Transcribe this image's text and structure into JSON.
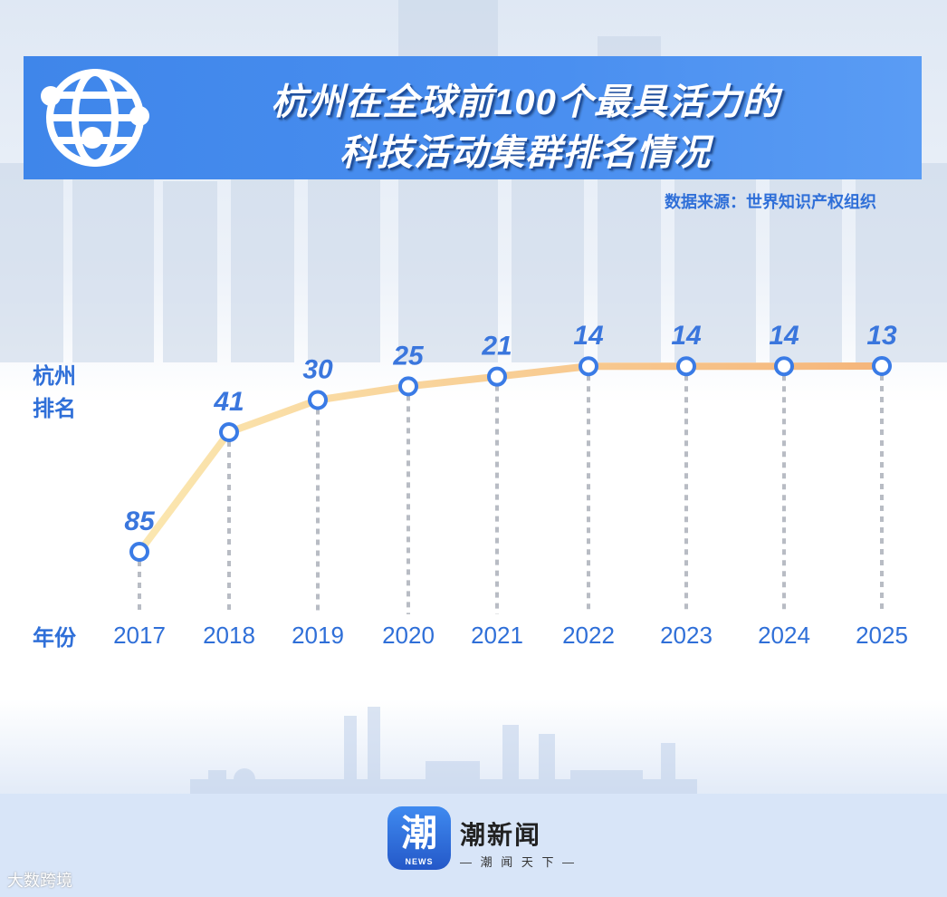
{
  "title": {
    "line1": "杭州在全球前100个最具活力的",
    "line2": "科技活动集群排名情况"
  },
  "source": "数据来源：世界知识产权组织",
  "footer": {
    "app_name": "潮新闻",
    "slogan": "— 潮 闻 天 下 —",
    "logo_char": "潮",
    "logo_sub": "NEWS",
    "watermark": "大数跨境"
  },
  "colors": {
    "accent": "#3f86ea",
    "line_start": "#fbe7b0",
    "line_end": "#f5b57a",
    "marker_stroke": "#3a7be6"
  },
  "chart_data": {
    "type": "line",
    "title": "杭州在全球前100个最具活力的科技活动集群排名情况",
    "ylabel": "杭州排名",
    "xlabel": "年份",
    "x": [
      "2017",
      "2018",
      "2019",
      "2020",
      "2021",
      "2022",
      "2023",
      "2024",
      "2025"
    ],
    "series": [
      {
        "values": [
          85,
          41,
          30,
          25,
          21,
          14,
          14,
          14,
          13
        ]
      }
    ],
    "y_inverted": true,
    "grid": false,
    "data_labels": true
  }
}
